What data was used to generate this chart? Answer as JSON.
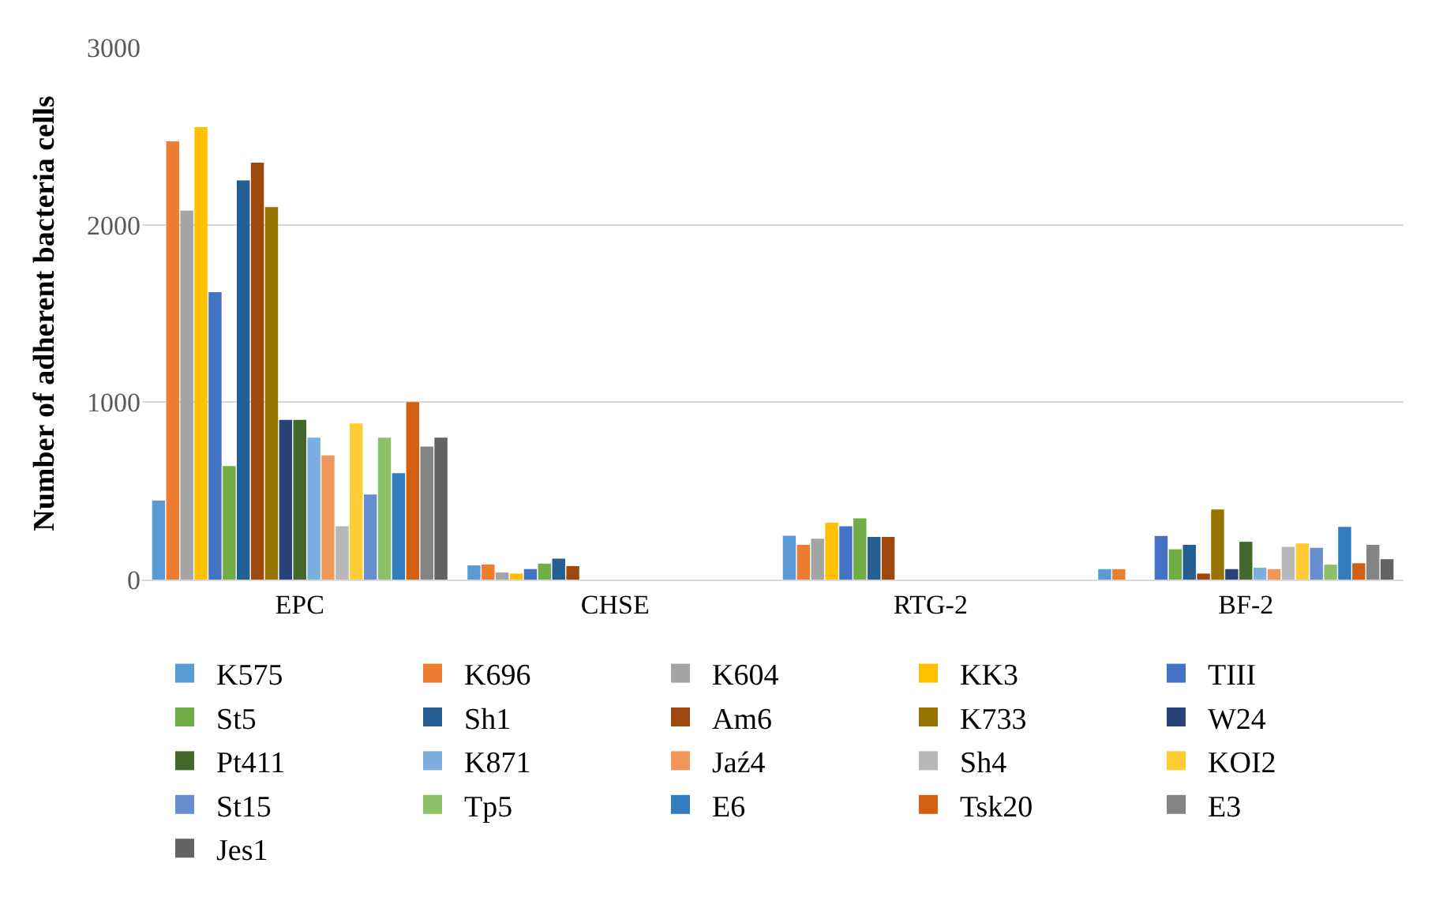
{
  "chart_data": {
    "type": "bar",
    "ylabel": "Number of adherent bacteria cells",
    "categories": [
      "EPC",
      "CHSE",
      "RTG-2",
      "BF-2"
    ],
    "series": [
      {
        "name": "K575",
        "color": "#5b9bd5",
        "values": [
          445,
          80,
          247,
          59
        ]
      },
      {
        "name": "K696",
        "color": "#ed7d31",
        "values": [
          2470,
          85,
          196,
          59
        ]
      },
      {
        "name": "K604",
        "color": "#a5a5a5",
        "values": [
          2080,
          40,
          230,
          null
        ]
      },
      {
        "name": "KK3",
        "color": "#ffc000",
        "values": [
          2550,
          34,
          320,
          null
        ]
      },
      {
        "name": "TIII",
        "color": "#4472c4",
        "values": [
          1620,
          59,
          300,
          246
        ]
      },
      {
        "name": "St5",
        "color": "#70ad47",
        "values": [
          640,
          90,
          345,
          171
        ]
      },
      {
        "name": "Sh1",
        "color": "#255e91",
        "values": [
          2250,
          118,
          240,
          196
        ]
      },
      {
        "name": "Am6",
        "color": "#9e480e",
        "values": [
          2350,
          76,
          240,
          34
        ]
      },
      {
        "name": "K733",
        "color": "#997300",
        "values": [
          2100,
          null,
          null,
          395
        ]
      },
      {
        "name": "W24",
        "color": "#264478",
        "values": [
          900,
          null,
          null,
          59
        ]
      },
      {
        "name": "Pt411",
        "color": "#43682b",
        "values": [
          900,
          null,
          null,
          213
        ]
      },
      {
        "name": "K871",
        "color": "#7cafdd",
        "values": [
          800,
          null,
          null,
          67
        ]
      },
      {
        "name": "Jaź4",
        "color": "#f1975a",
        "values": [
          700,
          null,
          null,
          59
        ]
      },
      {
        "name": "Sh4",
        "color": "#b7b7b7",
        "values": [
          300,
          null,
          null,
          185
        ]
      },
      {
        "name": "KOI2",
        "color": "#ffcd33",
        "values": [
          880,
          null,
          null,
          204
        ]
      },
      {
        "name": "St15",
        "color": "#698ed0",
        "values": [
          480,
          null,
          null,
          179
        ]
      },
      {
        "name": "Tp5",
        "color": "#8cc168",
        "values": [
          800,
          null,
          null,
          84
        ]
      },
      {
        "name": "E6",
        "color": "#327dc2",
        "values": [
          600,
          null,
          null,
          297
        ]
      },
      {
        "name": "Tsk20",
        "color": "#d26012",
        "values": [
          1000,
          null,
          null,
          92
        ]
      },
      {
        "name": "E3",
        "color": "#848484",
        "values": [
          750,
          null,
          null,
          196
        ]
      },
      {
        "name": "Jes1",
        "color": "#636363",
        "values": [
          800,
          null,
          null,
          115
        ]
      }
    ],
    "ylim": [
      0,
      3000
    ],
    "yticks": [
      0,
      1000,
      2000,
      3000
    ],
    "grid": "y",
    "legend": "bottom"
  }
}
